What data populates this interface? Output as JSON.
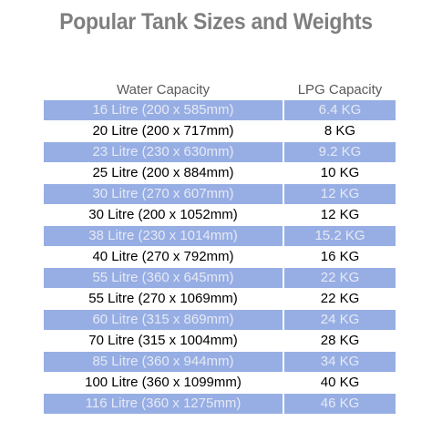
{
  "title": "Popular Tank Sizes and Weights",
  "headers": {
    "water": "Water Capacity",
    "lpg": "LPG Capacity"
  },
  "rows": [
    {
      "water": "16 Litre (200 x 585mm)",
      "lpg": "6.4 KG"
    },
    {
      "water": "20 Litre (200 x 717mm)",
      "lpg": "8 KG"
    },
    {
      "water": "23 Litre (230 x 630mm)",
      "lpg": "9.2 KG"
    },
    {
      "water": "25 Litre (200 x 884mm)",
      "lpg": "10 KG"
    },
    {
      "water": "30 Litre (270 x 607mm)",
      "lpg": "12 KG"
    },
    {
      "water": "30 Litre (200 x 1052mm)",
      "lpg": "12 KG"
    },
    {
      "water": "38 Litre (230 x 1014mm)",
      "lpg": "15.2 KG"
    },
    {
      "water": "40 Litre (270 x 792mm)",
      "lpg": "16 KG"
    },
    {
      "water": "55 Litre (360 x 645mm)",
      "lpg": "22 KG"
    },
    {
      "water": "55 Litre (270 x 1069mm)",
      "lpg": "22 KG"
    },
    {
      "water": "60 Litre (315 x 869mm)",
      "lpg": "24 KG"
    },
    {
      "water": "70 Litre (315 x 1004mm)",
      "lpg": "28 KG"
    },
    {
      "water": "85 Litre (360 x 944mm)",
      "lpg": "34 KG"
    },
    {
      "water": "100 Litre (360 x 1099mm)",
      "lpg": "40 KG"
    },
    {
      "water": "116 Litre (360 x 1275mm)",
      "lpg": "46 KG"
    }
  ],
  "colors": {
    "shaded_row": "#97aee4",
    "shaded_text": "#e6e9f4",
    "title": "#7f7f7f",
    "header": "#595959"
  }
}
